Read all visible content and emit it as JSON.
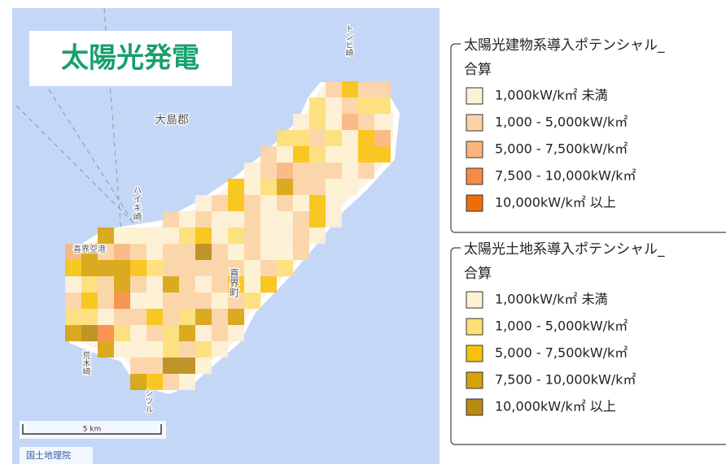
{
  "title": "太陽光発電",
  "map": {
    "labels": [
      "大島郡",
      "ハイキ崎",
      "喜界空港",
      "喜界町",
      "荒木崎",
      "シツル",
      "トンビ崎"
    ],
    "scale": "5 km",
    "attribution": "国土地理院"
  },
  "legends": [
    {
      "title": "太陽光建物系導入ポテンシャル_",
      "subtitle": "合算",
      "items": [
        {
          "label": "1,000kW/k㎡ 未満",
          "color": "#fdf0d5"
        },
        {
          "label": "1,000 - 5,000kW/k㎡",
          "color": "#fcd3a4"
        },
        {
          "label": "5,000 - 7,500kW/k㎡",
          "color": "#fbb57c"
        },
        {
          "label": "7,500 - 10,000kW/k㎡",
          "color": "#f78b44"
        },
        {
          "label": "10,000kW/k㎡ 以上",
          "color": "#ef6c0b"
        }
      ]
    },
    {
      "title": "太陽光土地系導入ポテンシャル_",
      "subtitle": "合算",
      "items": [
        {
          "label": "1,000kW/k㎡ 未満",
          "color": "#fdf2d2"
        },
        {
          "label": "1,000 - 5,000kW/k㎡",
          "color": "#fddf74"
        },
        {
          "label": "5,000 - 7,500kW/k㎡",
          "color": "#f8c20c"
        },
        {
          "label": "7,500 - 10,000kW/k㎡",
          "color": "#d6a20a"
        },
        {
          "label": "10,000kW/k㎡ 以上",
          "color": "#b68b13"
        }
      ]
    }
  ]
}
